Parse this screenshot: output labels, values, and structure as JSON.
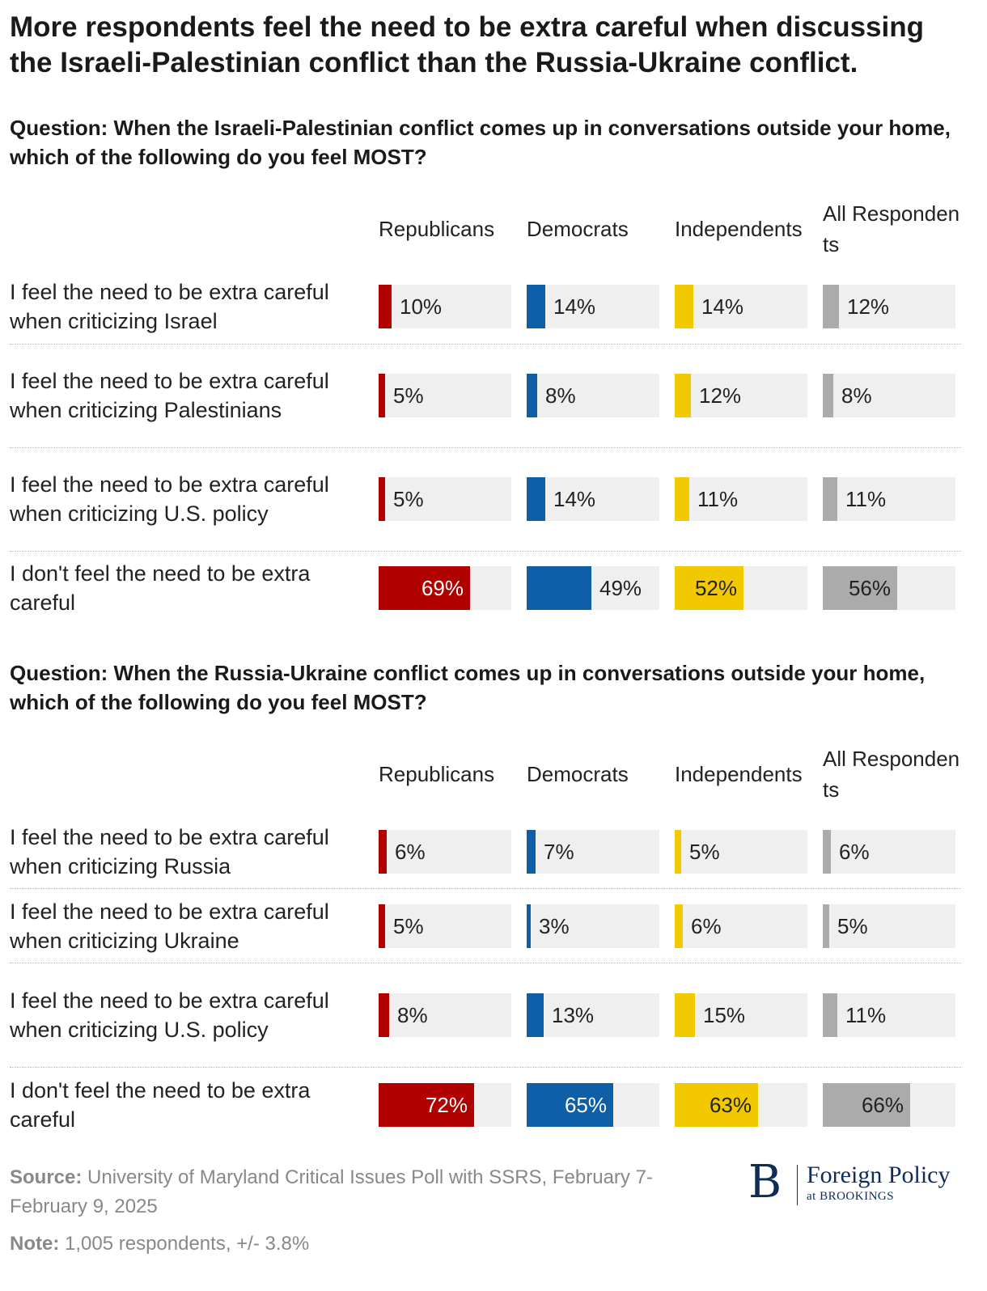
{
  "title": "More respondents feel the need to be extra careful when discussing the Israeli-Palestinian conflict than the Russia-Ukraine conflict.",
  "colors": {
    "republicans": "#b00000",
    "democrats": "#0e5ea8",
    "independents": "#f2c800",
    "all": "#ababab",
    "track": "#efefef"
  },
  "chart_data": [
    {
      "type": "bar",
      "title": "Question: When the Israeli-Palestinian conflict comes up in conversations outside your home, which of the following do you feel MOST?",
      "categories": [
        "I feel the need to be extra careful when criticizing Israel",
        "I feel the need to be extra careful when criticizing Palestinians",
        "I feel the need to be extra careful when criticizing U.S. policy",
        "I don't feel the need to be extra careful"
      ],
      "series": [
        {
          "name": "Republicans",
          "values": [
            10,
            5,
            5,
            69
          ],
          "labels": [
            "10%",
            "5%",
            "5%",
            "69%"
          ]
        },
        {
          "name": "Democrats",
          "values": [
            14,
            8,
            14,
            49
          ],
          "labels": [
            "14%",
            "8%",
            "14%",
            "49%"
          ]
        },
        {
          "name": "Independents",
          "values": [
            14,
            12,
            11,
            52
          ],
          "labels": [
            "14%",
            "12%",
            "11%",
            "52%"
          ]
        },
        {
          "name": "All Respondents",
          "values": [
            12,
            8,
            11,
            56
          ],
          "labels": [
            "12%",
            "8%",
            "11%",
            "56%"
          ]
        }
      ],
      "xlim": [
        0,
        100
      ]
    },
    {
      "type": "bar",
      "title": "Question: When the Russia-Ukraine conflict comes up in conversations outside your home, which of the following do you feel MOST?",
      "categories": [
        "I feel the need to be extra careful when criticizing Russia",
        "I feel the need to be extra careful when criticizing Ukraine",
        "I feel the need to be extra careful when criticizing U.S. policy",
        "I don't feel the need to be extra careful"
      ],
      "series": [
        {
          "name": "Republicans",
          "values": [
            6,
            5,
            8,
            72
          ],
          "labels": [
            "6%",
            "5%",
            "8%",
            "72%"
          ]
        },
        {
          "name": "Democrats",
          "values": [
            7,
            3,
            13,
            65
          ],
          "labels": [
            "7%",
            "3%",
            "13%",
            "65%"
          ]
        },
        {
          "name": "Independents",
          "values": [
            5,
            6,
            15,
            63
          ],
          "labels": [
            "5%",
            "6%",
            "15%",
            "63%"
          ]
        },
        {
          "name": "All Respondents",
          "values": [
            6,
            5,
            11,
            66
          ],
          "labels": [
            "6%",
            "5%",
            "11%",
            "66%"
          ]
        }
      ],
      "xlim": [
        0,
        100
      ]
    }
  ],
  "footer": {
    "source_label": "Source:",
    "source_text": "University of Maryland Critical Issues Poll with SSRS, February 7-February 9, 2025",
    "note_label": "Note:",
    "note_text": "1,005 respondents, +/- 3.8%"
  },
  "logo": {
    "mark": "B",
    "name": "Foreign Policy",
    "sub": "at BROOKINGS"
  }
}
